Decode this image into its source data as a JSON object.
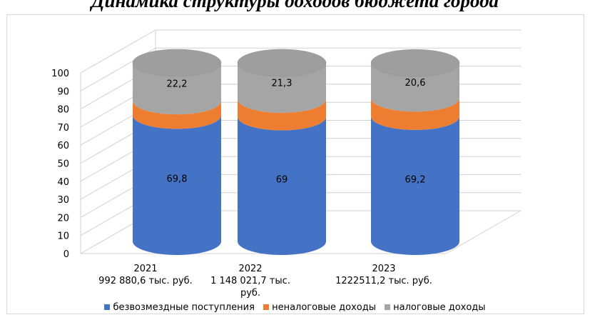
{
  "title": "Динамика структуры доходов бюджета города",
  "colors": {
    "blue": "#4472C4",
    "blue_top": "#5B8BE0",
    "orange": "#ED7D31",
    "orange_top": "#F7963F",
    "gray": "#A5A5A5",
    "gray_top": "#9E9E9E",
    "grid": "#d0d0d0"
  },
  "chart_data": {
    "type": "bar",
    "stacked": true,
    "three_d": "cylinder",
    "categories": [
      [
        "2021",
        "992 880,6 тыс. руб."
      ],
      [
        "2022",
        "1 148 021,7 тыс.",
        "руб."
      ],
      [
        "2023",
        "1222511,2 тыс. руб."
      ]
    ],
    "series": [
      {
        "name": "безвозмездные поступления",
        "values": [
          69.8,
          69,
          69.2
        ],
        "labels": [
          "69,8",
          "69",
          "69,2"
        ]
      },
      {
        "name": "неналоговые доходы",
        "values": [
          8,
          9.7,
          10.1
        ],
        "labels": [
          "8",
          "9,7",
          "10,1"
        ]
      },
      {
        "name": "налоговые доходы",
        "values": [
          22.2,
          21.3,
          20.6
        ],
        "labels": [
          "22,2",
          "21,3",
          "20,6"
        ]
      }
    ],
    "ylim": [
      0,
      100
    ],
    "yticks": [
      "0",
      "10",
      "20",
      "30",
      "40",
      "50",
      "60",
      "70",
      "80",
      "90",
      "100"
    ],
    "grid": true,
    "legend": "bottom"
  }
}
